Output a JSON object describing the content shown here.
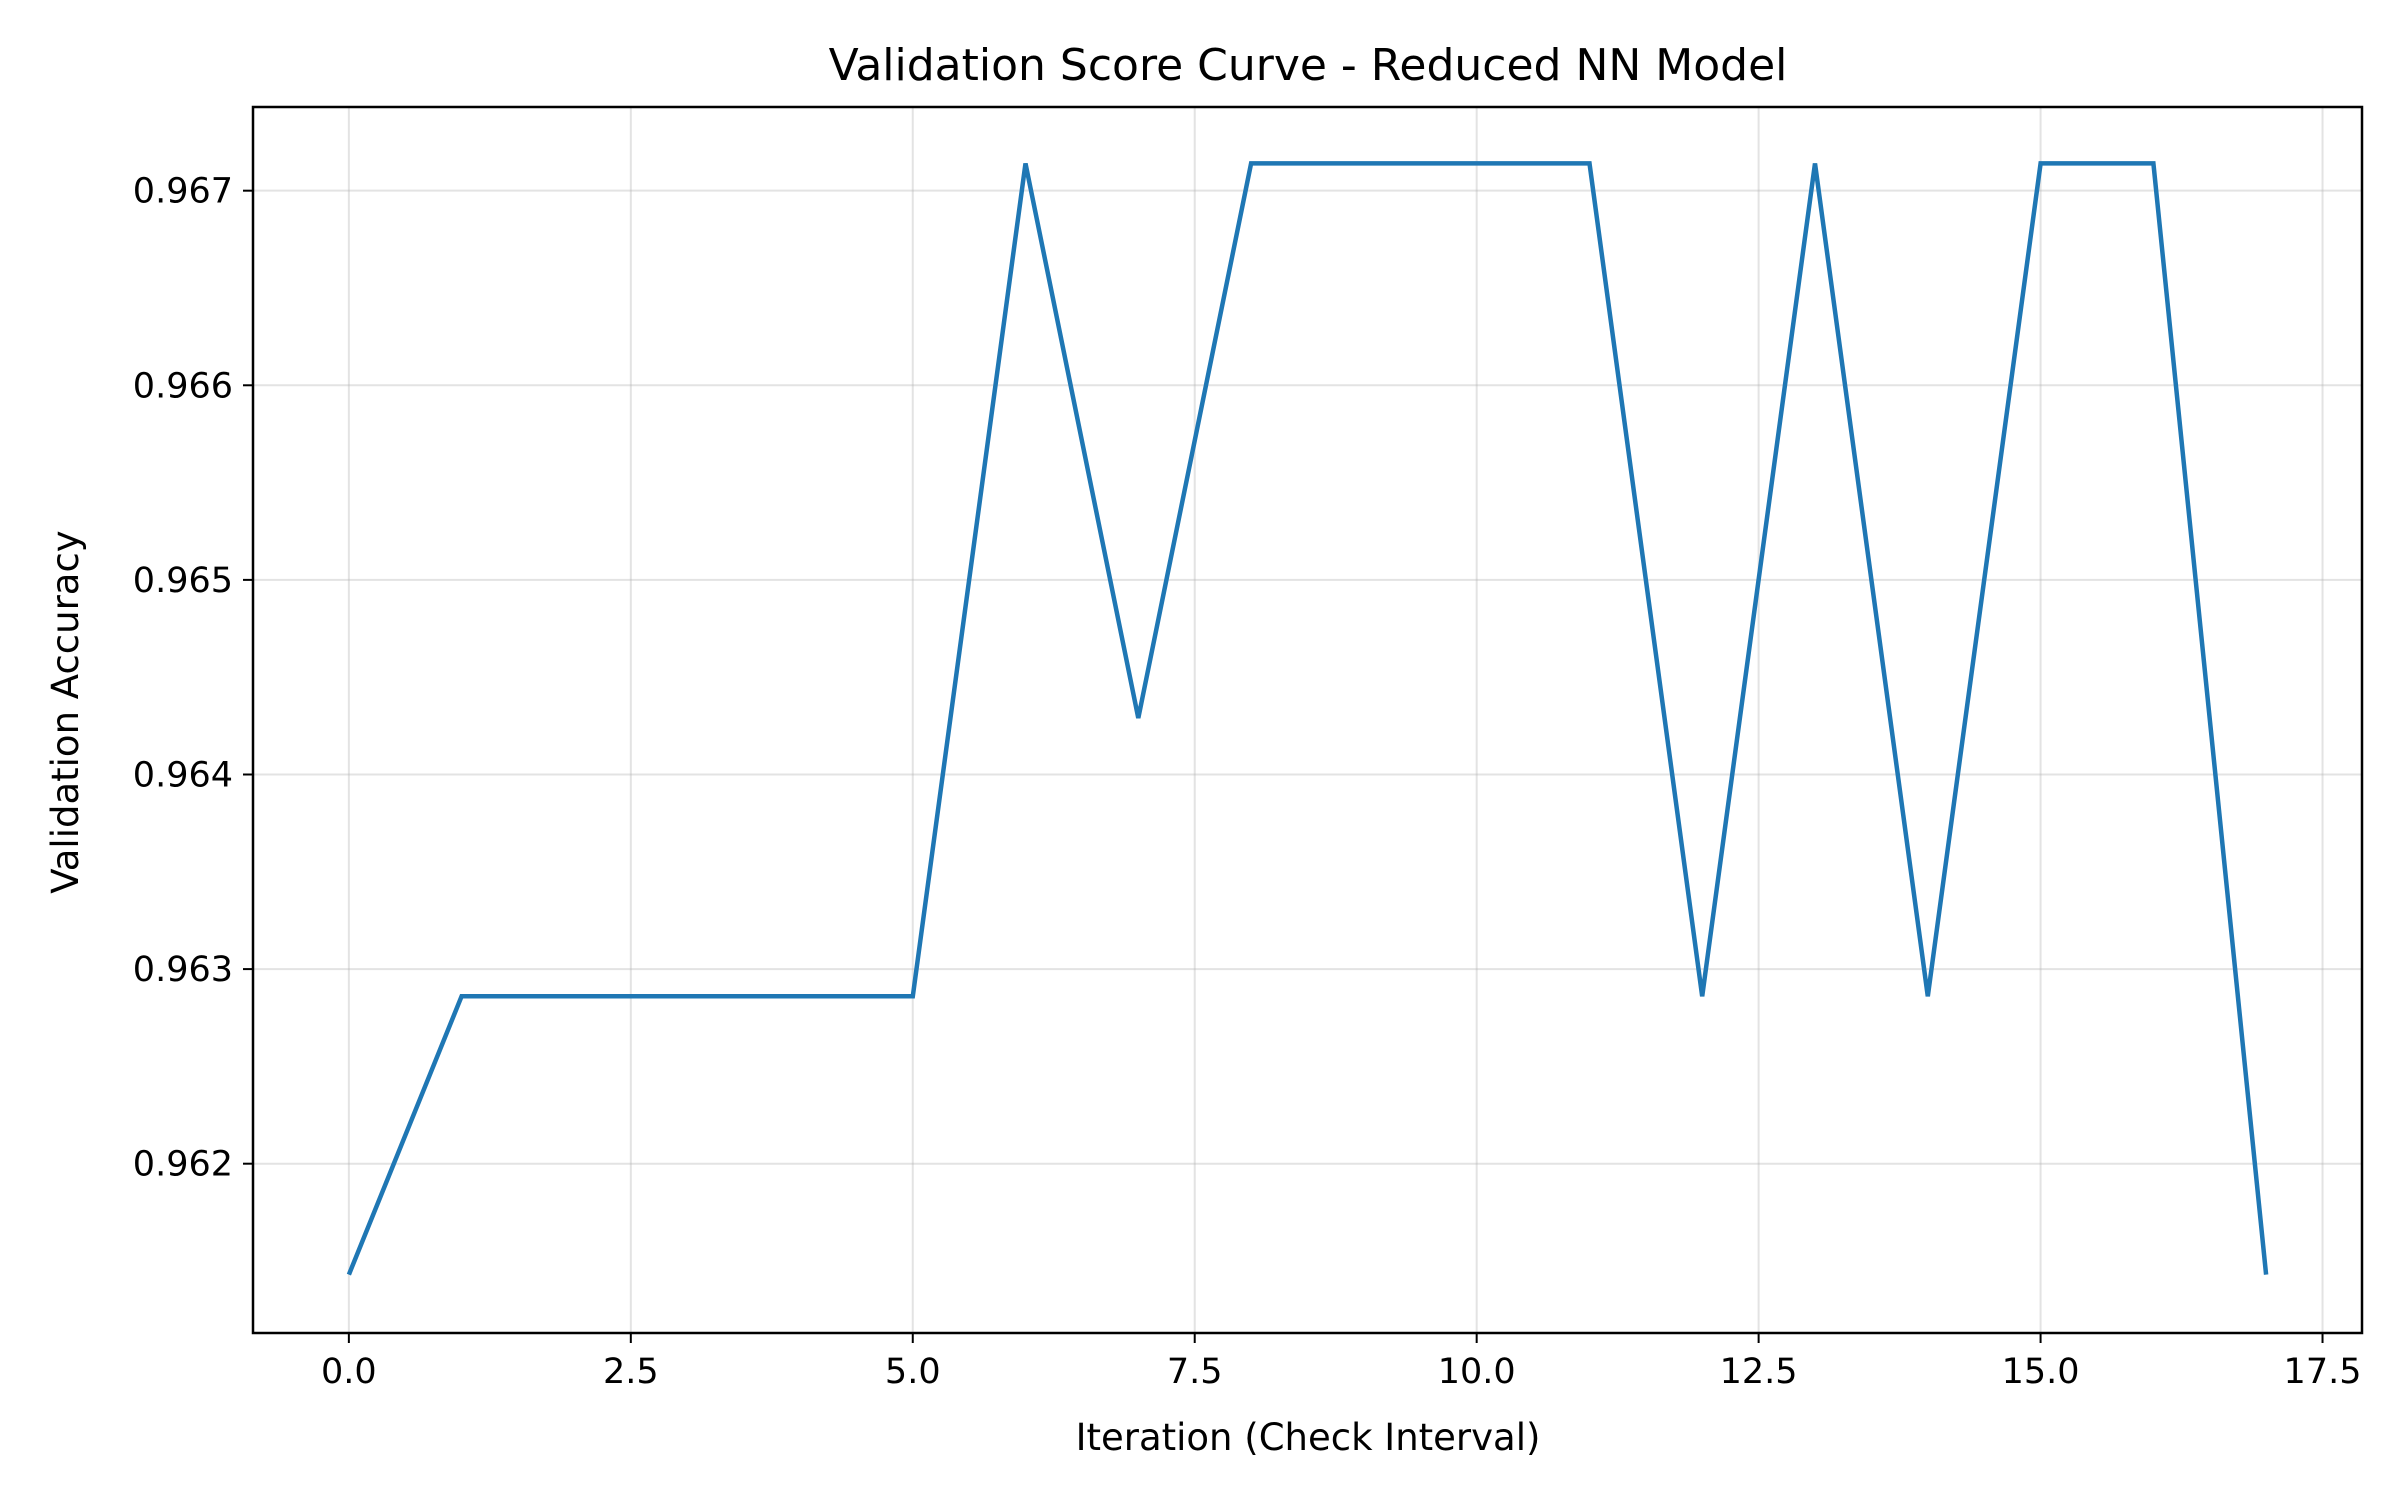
{
  "chart_data": {
    "type": "line",
    "title": "Validation Score Curve - Reduced NN Model",
    "xlabel": "Iteration (Check Interval)",
    "ylabel": "Validation Accuracy",
    "xlim": [
      -0.85,
      17.85
    ],
    "ylim": [
      0.96113,
      0.96743
    ],
    "xticks": [
      0.0,
      2.5,
      5.0,
      7.5,
      10.0,
      12.5,
      15.0,
      17.5
    ],
    "xtick_labels": [
      "0.0",
      "2.5",
      "5.0",
      "7.5",
      "10.0",
      "12.5",
      "15.0",
      "17.5"
    ],
    "yticks": [
      0.962,
      0.963,
      0.964,
      0.965,
      0.966,
      0.967
    ],
    "ytick_labels": [
      "0.962",
      "0.963",
      "0.964",
      "0.965",
      "0.966",
      "0.967"
    ],
    "grid": true,
    "series_color": "#1f77b4",
    "series": [
      {
        "x": [
          0,
          1,
          2,
          3,
          4,
          5,
          6,
          7,
          8,
          9,
          10,
          11,
          12,
          13,
          14,
          15,
          16,
          17
        ],
        "values": [
          0.96143,
          0.96286,
          0.96286,
          0.96286,
          0.96286,
          0.96286,
          0.96714,
          0.96429,
          0.96714,
          0.96714,
          0.96714,
          0.96714,
          0.96286,
          0.96714,
          0.96286,
          0.96714,
          0.96714,
          0.96143
        ]
      }
    ]
  }
}
